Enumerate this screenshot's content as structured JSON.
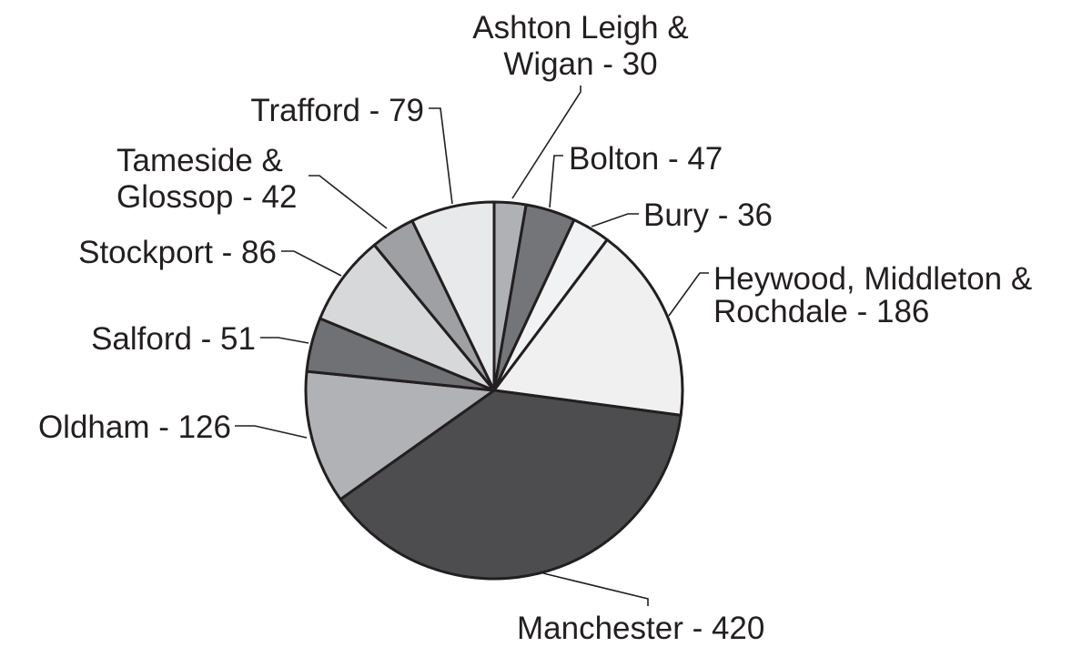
{
  "chart_data": {
    "type": "pie",
    "title": "",
    "slices": [
      {
        "lines": [
          "Ashton Leigh &",
          "Wigan - 30"
        ],
        "value": 30,
        "color": "#b0b1b4"
      },
      {
        "lines": [
          "Bolton - 47"
        ],
        "value": 47,
        "color": "#747578"
      },
      {
        "lines": [
          "Bury - 36"
        ],
        "value": 36,
        "color": "#f1f2f3"
      },
      {
        "lines": [
          "Heywood, Middleton &",
          "Rochdale - 186"
        ],
        "value": 186,
        "color": "#f0f0f1"
      },
      {
        "lines": [
          "Manchester - 420"
        ],
        "value": 420,
        "color": "#4d4d4f"
      },
      {
        "lines": [
          "Oldham - 126"
        ],
        "value": 126,
        "color": "#b1b2b5"
      },
      {
        "lines": [
          "Salford - 51"
        ],
        "value": 51,
        "color": "#707174"
      },
      {
        "lines": [
          "Stockport - 86"
        ],
        "value": 86,
        "color": "#d7d8da"
      },
      {
        "lines": [
          "Tameside &",
          "Glossop - 42"
        ],
        "value": 42,
        "color": "#9fa0a3"
      },
      {
        "lines": [
          "Trafford - 79"
        ],
        "value": 79,
        "color": "#e8e9ea"
      }
    ],
    "legend": "none",
    "start_angle_deg": 0,
    "direction": "clockwise"
  }
}
